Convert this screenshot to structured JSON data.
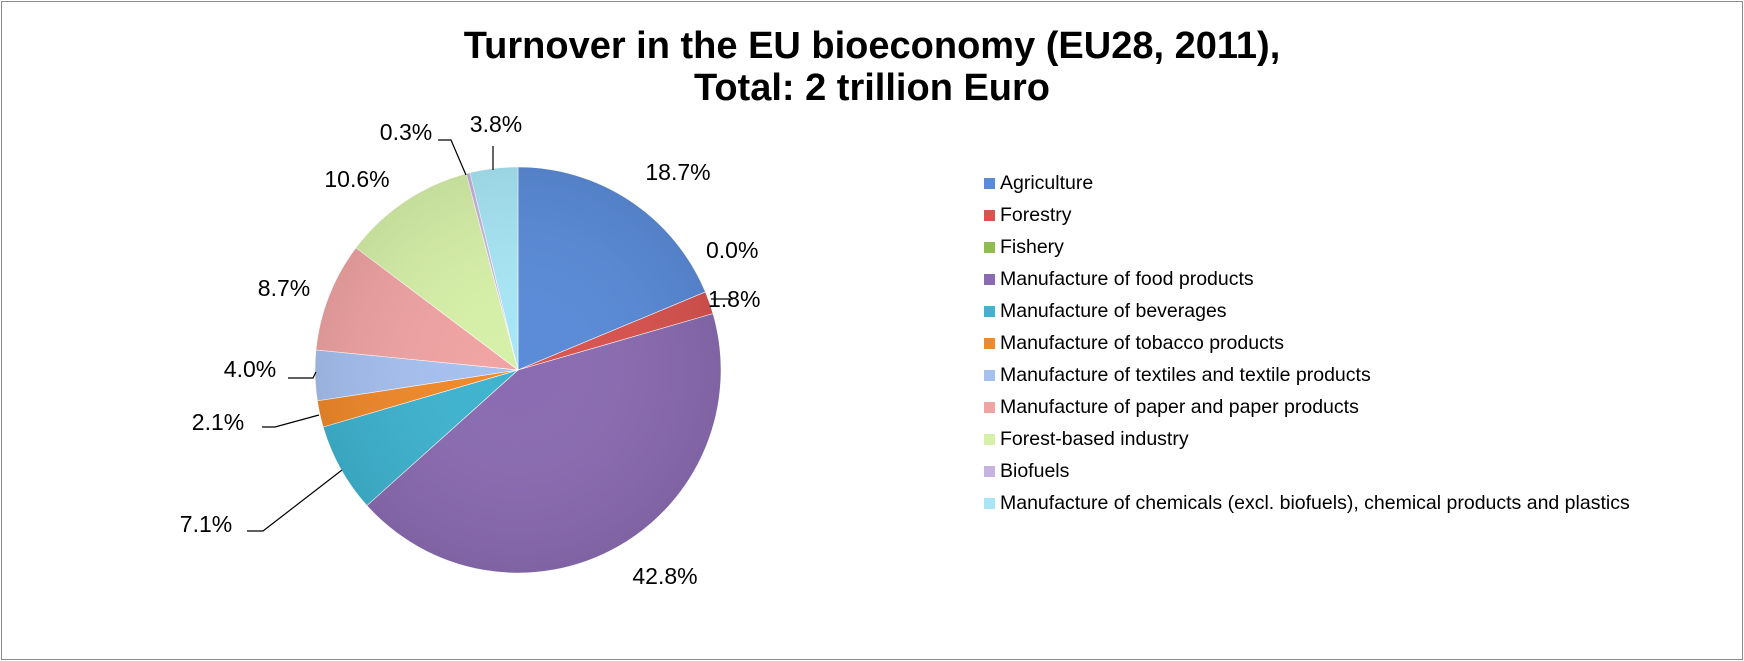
{
  "chart_data": {
    "type": "pie",
    "title_line1": "Turnover in the EU bioeconomy (EU28, 2011),",
    "title_line2": "Total: 2 trillion Euro",
    "legend_position": "right",
    "slices": [
      {
        "name": "Agriculture",
        "value": 18.7,
        "label": "18.7%",
        "color": "#5a8bd8"
      },
      {
        "name": "Forestry",
        "value": 1.8,
        "label": "1.8%",
        "color": "#d9534f"
      },
      {
        "name": "Fishery",
        "value": 0.0,
        "label": "0.0%",
        "color": "#8fbd4f"
      },
      {
        "name": "Manufacture of food products",
        "value": 42.8,
        "label": "42.8%",
        "color": "#8a6bb1"
      },
      {
        "name": "Manufacture of beverages",
        "value": 7.1,
        "label": "7.1%",
        "color": "#3fb3cf"
      },
      {
        "name": "Manufacture of tobacco products",
        "value": 2.1,
        "label": "2.1%",
        "color": "#f0892b"
      },
      {
        "name": "Manufacture of textiles and textile products",
        "value": 4.0,
        "label": "4.0%",
        "color": "#a6c0f0"
      },
      {
        "name": "Manufacture of paper and paper products",
        "value": 8.7,
        "label": "8.7%",
        "color": "#f0a3a3"
      },
      {
        "name": "Forest-based industry",
        "value": 10.6,
        "label": "10.6%",
        "color": "#d6f0a8"
      },
      {
        "name": "Biofuels",
        "value": 0.3,
        "label": "0.3%",
        "color": "#c7b3e0"
      },
      {
        "name": "Manufacture of chemicals (excl. biofuels), chemical products and plastics",
        "value": 3.8,
        "label": "3.8%",
        "color": "#a8e6f5"
      }
    ]
  }
}
